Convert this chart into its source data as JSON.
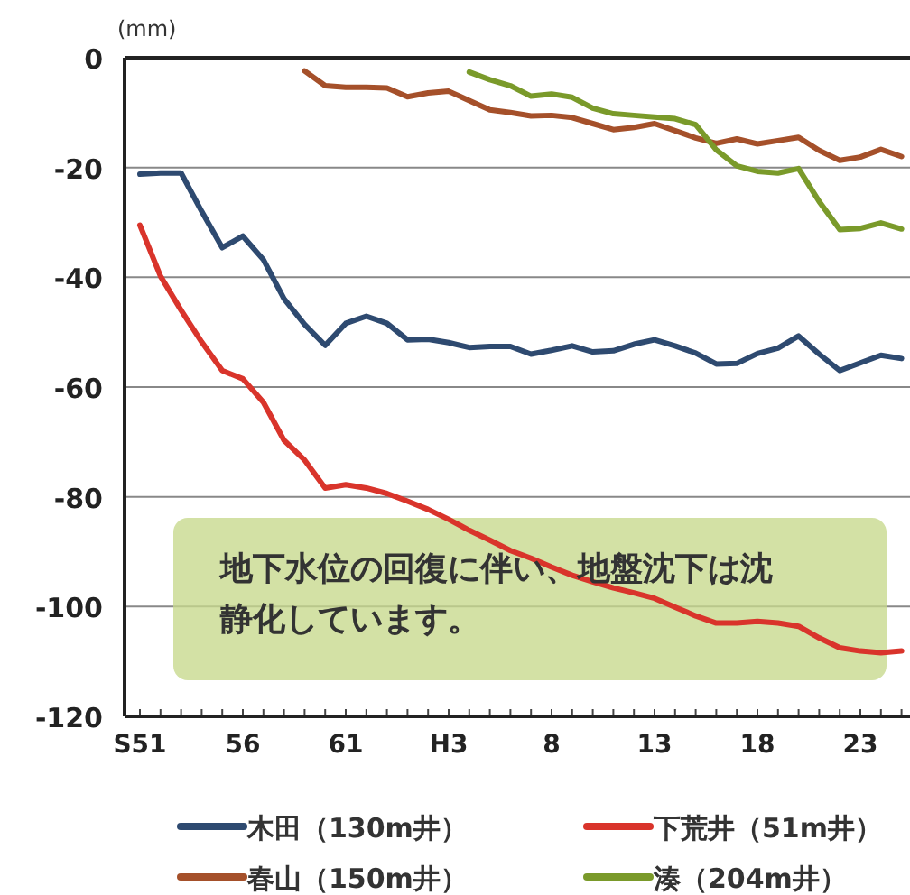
{
  "chart_data": {
    "type": "line",
    "ylabel": "(mm)",
    "categories": [
      "S51",
      null,
      null,
      null,
      null,
      "56",
      null,
      null,
      null,
      null,
      "61",
      null,
      null,
      null,
      null,
      "H3",
      null,
      null,
      null,
      null,
      "8",
      null,
      null,
      null,
      null,
      "13",
      null,
      null,
      null,
      null,
      "18",
      null,
      null,
      null,
      null,
      "23",
      null,
      null
    ],
    "ylim": [
      -120,
      0
    ],
    "yticks": [
      0,
      -20,
      -40,
      -60,
      -80,
      -100,
      -120
    ],
    "grid": "y",
    "legend": "bottom",
    "marker": "none",
    "line_style": "solid",
    "annotations": [
      "地下水位の回復に伴い、地盤沈下は沈静化しています。"
    ],
    "series": [
      {
        "name": "木田（130m井）",
        "color": "#2e4a70",
        "values": [
          -21.2,
          -21,
          -21,
          -28,
          -34.6,
          -32.5,
          -36.8,
          -43.9,
          -48.6,
          -52.4,
          -48.4,
          -47.1,
          -48.4,
          -51.4,
          -51.3,
          -51.9,
          -52.8,
          -52.6,
          -52.6,
          -54,
          -53.3,
          -52.5,
          -53.6,
          -53.4,
          -52.2,
          -51.4,
          -52.5,
          -53.8,
          -55.8,
          -55.7,
          -53.9,
          -52.9,
          -50.7,
          -54,
          -57,
          -55.6,
          -54.2,
          -54.8
        ]
      },
      {
        "name": "下荒井（51m井）",
        "color": "#d9342b",
        "values": [
          -30.5,
          -39.8,
          -46,
          -51.8,
          -57,
          -58.5,
          -62.8,
          -69.7,
          -73.3,
          -78.4,
          -77.8,
          -78.4,
          -79.4,
          -80.8,
          -82.3,
          -84.1,
          -86.1,
          -87.9,
          -89.8,
          -91.2,
          -92.8,
          -94.3,
          -95.5,
          -96.6,
          -97.5,
          -98.5,
          -100.1,
          -101.7,
          -103,
          -103,
          -102.7,
          -103,
          -103.6,
          -105.7,
          -107.5,
          -108.1,
          -108.4,
          -108.1
        ]
      },
      {
        "name": "春山（150m井）",
        "color": "#a5502a",
        "values": [
          null,
          null,
          null,
          null,
          null,
          null,
          null,
          null,
          -2.4,
          -5.1,
          -5.4,
          -5.4,
          -5.5,
          -7.1,
          -6.4,
          -6.1,
          -7.8,
          -9.5,
          -10,
          -10.6,
          -10.5,
          -10.9,
          -12,
          -13.1,
          -12.7,
          -12,
          -13.3,
          -14.6,
          -15.6,
          -14.8,
          -15.7,
          -15.1,
          -14.5,
          -16.9,
          -18.7,
          -18.1,
          -16.7,
          -18
        ]
      },
      {
        "name": "湊（204m井）",
        "color": "#7a9a2a",
        "values": [
          null,
          null,
          null,
          null,
          null,
          null,
          null,
          null,
          null,
          null,
          null,
          null,
          null,
          null,
          null,
          null,
          -2.6,
          -4,
          -5.1,
          -7,
          -6.6,
          -7.2,
          -9.2,
          -10.2,
          -10.5,
          -10.8,
          -11.1,
          -12.2,
          -16.8,
          -19.7,
          -20.7,
          -21,
          -20.2,
          -26.2,
          -31.3,
          -31.1,
          -30.1,
          -31.2
        ]
      }
    ]
  }
}
